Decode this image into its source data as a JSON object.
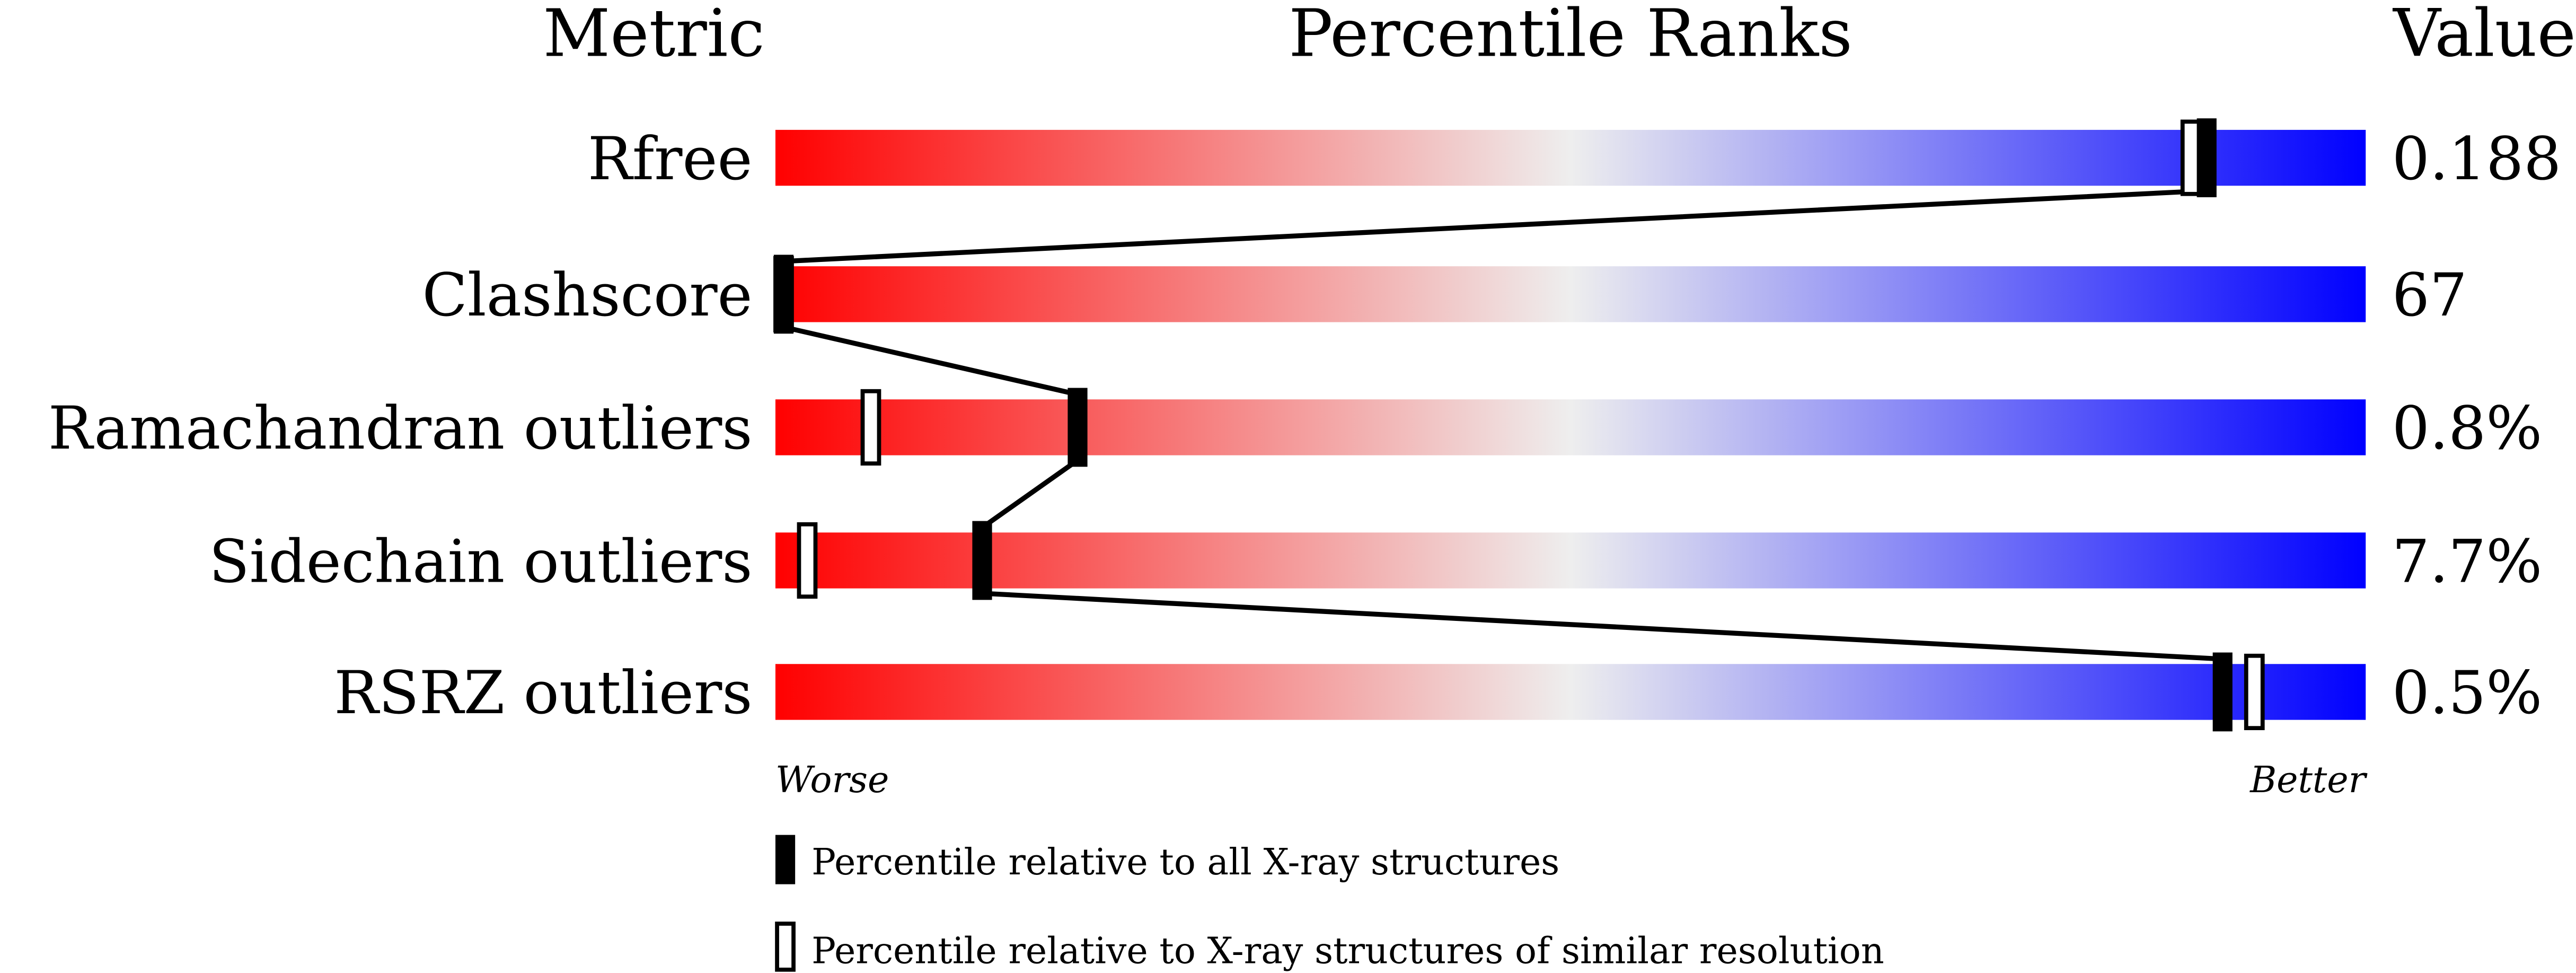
{
  "headers": {
    "metric": "Metric",
    "ranks": "Percentile Ranks",
    "value": "Value"
  },
  "chart_data": {
    "type": "percentile-slider",
    "xlim": [
      0,
      100
    ],
    "gradient_colors": [
      "#ff0000",
      "#eeeeee",
      "#0000ff"
    ],
    "rows": [
      {
        "metric": "Rfree",
        "value": "0.188",
        "percentile_all": 90,
        "percentile_similar": 89
      },
      {
        "metric": "Clashscore",
        "value": "67",
        "percentile_all": 0,
        "percentile_similar": 0
      },
      {
        "metric": "Ramachandran outliers",
        "value": "0.8%",
        "percentile_all": 19,
        "percentile_similar": 6
      },
      {
        "metric": "Sidechain outliers",
        "value": "7.7%",
        "percentile_all": 13,
        "percentile_similar": 2
      },
      {
        "metric": "RSRZ outliers",
        "value": "0.5%",
        "percentile_all": 91,
        "percentile_similar": 93
      }
    ],
    "axis_labels": {
      "left": "Worse",
      "right": "Better"
    },
    "legend": [
      {
        "marker": "filled",
        "label": "Percentile relative to all X-ray structures"
      },
      {
        "marker": "open",
        "label": "Percentile relative to X-ray structures of similar resolution"
      }
    ]
  }
}
